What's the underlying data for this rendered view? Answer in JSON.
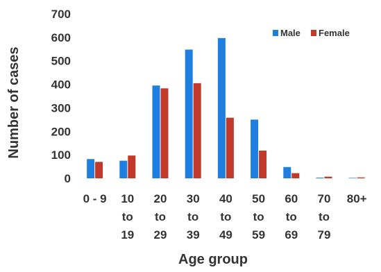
{
  "chart_data": {
    "type": "bar",
    "title": "",
    "xlabel": "Age group",
    "ylabel": "Number of cases",
    "ylim": [
      0,
      700
    ],
    "yticks": [
      0,
      100,
      200,
      300,
      400,
      500,
      600,
      700
    ],
    "grid": false,
    "legend_position": "top-right",
    "categories": [
      [
        "0 - 9"
      ],
      [
        "10",
        "to",
        "19"
      ],
      [
        "20",
        "to",
        "29"
      ],
      [
        "30",
        "to",
        "39"
      ],
      [
        "40",
        "to",
        "49"
      ],
      [
        "50",
        "to",
        "59"
      ],
      [
        "60",
        "to",
        "69"
      ],
      [
        "70",
        "to",
        "79"
      ],
      [
        "80+"
      ]
    ],
    "series": [
      {
        "name": "Male",
        "color": "#1f7fe0",
        "values": [
          82,
          75,
          395,
          548,
          597,
          250,
          48,
          3,
          2
        ]
      },
      {
        "name": "Female",
        "color": "#c0392b",
        "values": [
          70,
          97,
          383,
          405,
          258,
          118,
          22,
          7,
          4
        ]
      }
    ]
  }
}
